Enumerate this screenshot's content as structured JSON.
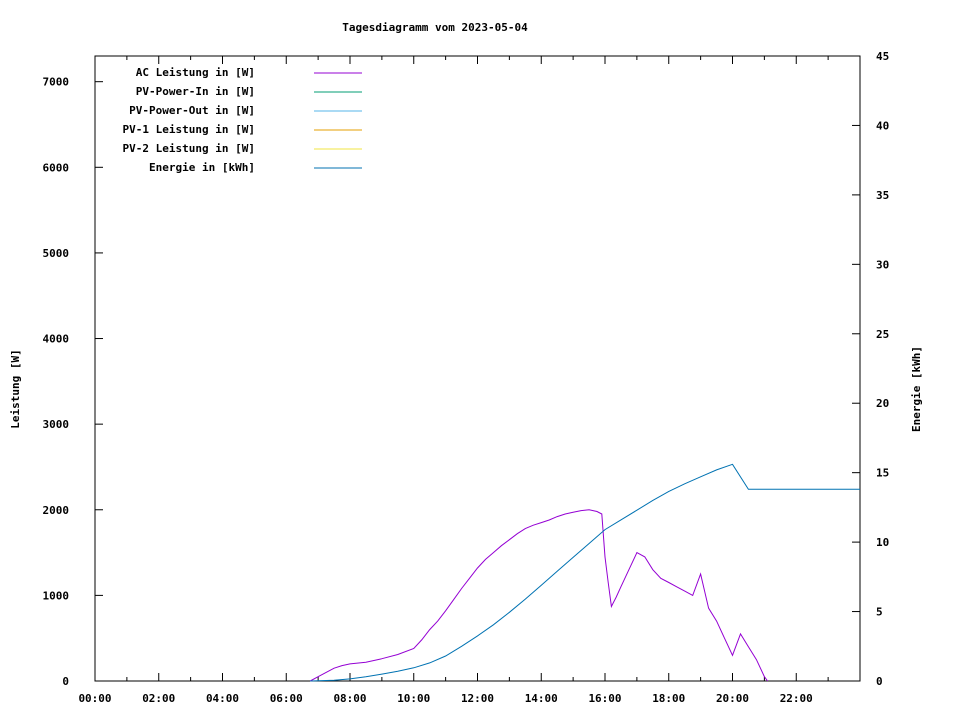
{
  "chart_data": {
    "type": "line",
    "title": "Tagesdiagramm vom 2023-05-04",
    "ylabel": "Leistung [W]",
    "y2label": "Energie [kWh]",
    "xlim": [
      0,
      24
    ],
    "ylim": [
      0,
      7300
    ],
    "y2lim": [
      0,
      45
    ],
    "x_ticks": [
      {
        "x": 0,
        "label": "00:00"
      },
      {
        "x": 2,
        "label": "02:00"
      },
      {
        "x": 4,
        "label": "04:00"
      },
      {
        "x": 6,
        "label": "06:00"
      },
      {
        "x": 8,
        "label": "08:00"
      },
      {
        "x": 10,
        "label": "10:00"
      },
      {
        "x": 12,
        "label": "12:00"
      },
      {
        "x": 14,
        "label": "14:00"
      },
      {
        "x": 16,
        "label": "16:00"
      },
      {
        "x": 18,
        "label": "18:00"
      },
      {
        "x": 20,
        "label": "20:00"
      },
      {
        "x": 22,
        "label": "22:00"
      }
    ],
    "y_ticks": [
      {
        "v": 0,
        "label": "0"
      },
      {
        "v": 1000,
        "label": "1000"
      },
      {
        "v": 2000,
        "label": "2000"
      },
      {
        "v": 3000,
        "label": "3000"
      },
      {
        "v": 4000,
        "label": "4000"
      },
      {
        "v": 5000,
        "label": "5000"
      },
      {
        "v": 6000,
        "label": "6000"
      },
      {
        "v": 7000,
        "label": "7000"
      }
    ],
    "y2_ticks": [
      {
        "v": 0,
        "label": "0"
      },
      {
        "v": 5,
        "label": "5"
      },
      {
        "v": 10,
        "label": "10"
      },
      {
        "v": 15,
        "label": "15"
      },
      {
        "v": 20,
        "label": "20"
      },
      {
        "v": 25,
        "label": "25"
      },
      {
        "v": 30,
        "label": "30"
      },
      {
        "v": 35,
        "label": "35"
      },
      {
        "v": 40,
        "label": "40"
      },
      {
        "v": 45,
        "label": "45"
      }
    ],
    "legend_position": "top-left",
    "grid": false,
    "series": [
      {
        "name": "AC Leistung in [W]",
        "axis": "y",
        "color": "#9400d3",
        "x": [
          6.75,
          7.0,
          7.25,
          7.5,
          7.75,
          8.0,
          8.5,
          9.0,
          9.5,
          10.0,
          10.25,
          10.5,
          10.75,
          11.0,
          11.25,
          11.5,
          11.75,
          12.0,
          12.25,
          12.5,
          12.75,
          13.0,
          13.25,
          13.5,
          13.75,
          14.0,
          14.25,
          14.5,
          14.75,
          15.0,
          15.25,
          15.5,
          15.75,
          15.9,
          16.0,
          16.1,
          16.2,
          16.35,
          16.5,
          16.75,
          17.0,
          17.25,
          17.5,
          17.75,
          18.0,
          18.25,
          18.5,
          18.75,
          19.0,
          19.25,
          19.5,
          19.75,
          20.0,
          20.25,
          20.5,
          20.75,
          21.0,
          21.1
        ],
        "values": [
          0,
          50,
          100,
          150,
          180,
          200,
          220,
          260,
          310,
          380,
          480,
          600,
          700,
          820,
          950,
          1080,
          1200,
          1320,
          1420,
          1500,
          1580,
          1650,
          1720,
          1780,
          1820,
          1850,
          1880,
          1920,
          1950,
          1970,
          1990,
          2000,
          1980,
          1950,
          1450,
          1150,
          870,
          980,
          1100,
          1300,
          1500,
          1450,
          1300,
          1200,
          1150,
          1100,
          1050,
          1000,
          1250,
          850,
          700,
          500,
          300,
          550,
          400,
          250,
          50,
          0
        ]
      },
      {
        "name": "PV-Power-In in [W]",
        "axis": "y",
        "color": "#009e73",
        "x": [],
        "values": []
      },
      {
        "name": "PV-Power-Out in [W]",
        "axis": "y",
        "color": "#56b4e9",
        "x": [],
        "values": []
      },
      {
        "name": "PV-1 Leistung in [W]",
        "axis": "y",
        "color": "#e69f00",
        "x": [],
        "values": []
      },
      {
        "name": "PV-2 Leistung in [W]",
        "axis": "y",
        "color": "#f0e442",
        "x": [],
        "values": []
      },
      {
        "name": "Energie in [kWh]",
        "axis": "y2",
        "color": "#0072b2",
        "x": [
          6.75,
          7.5,
          8.0,
          8.5,
          9.0,
          9.5,
          10.0,
          10.5,
          11.0,
          11.5,
          12.0,
          12.5,
          13.0,
          13.5,
          14.0,
          14.5,
          15.0,
          15.5,
          16.0,
          16.5,
          17.0,
          17.5,
          18.0,
          18.5,
          19.0,
          19.5,
          20.0,
          20.5,
          21.0,
          22.0,
          24.0
        ],
        "values": [
          0,
          0.05,
          0.15,
          0.3,
          0.5,
          0.7,
          0.95,
          1.3,
          1.8,
          2.5,
          3.25,
          4.05,
          4.95,
          5.9,
          6.9,
          7.9,
          8.9,
          9.9,
          10.9,
          11.6,
          12.3,
          13.0,
          13.65,
          14.2,
          14.7,
          15.2,
          15.6,
          13.8,
          13.8,
          13.8,
          13.8
        ]
      }
    ]
  }
}
